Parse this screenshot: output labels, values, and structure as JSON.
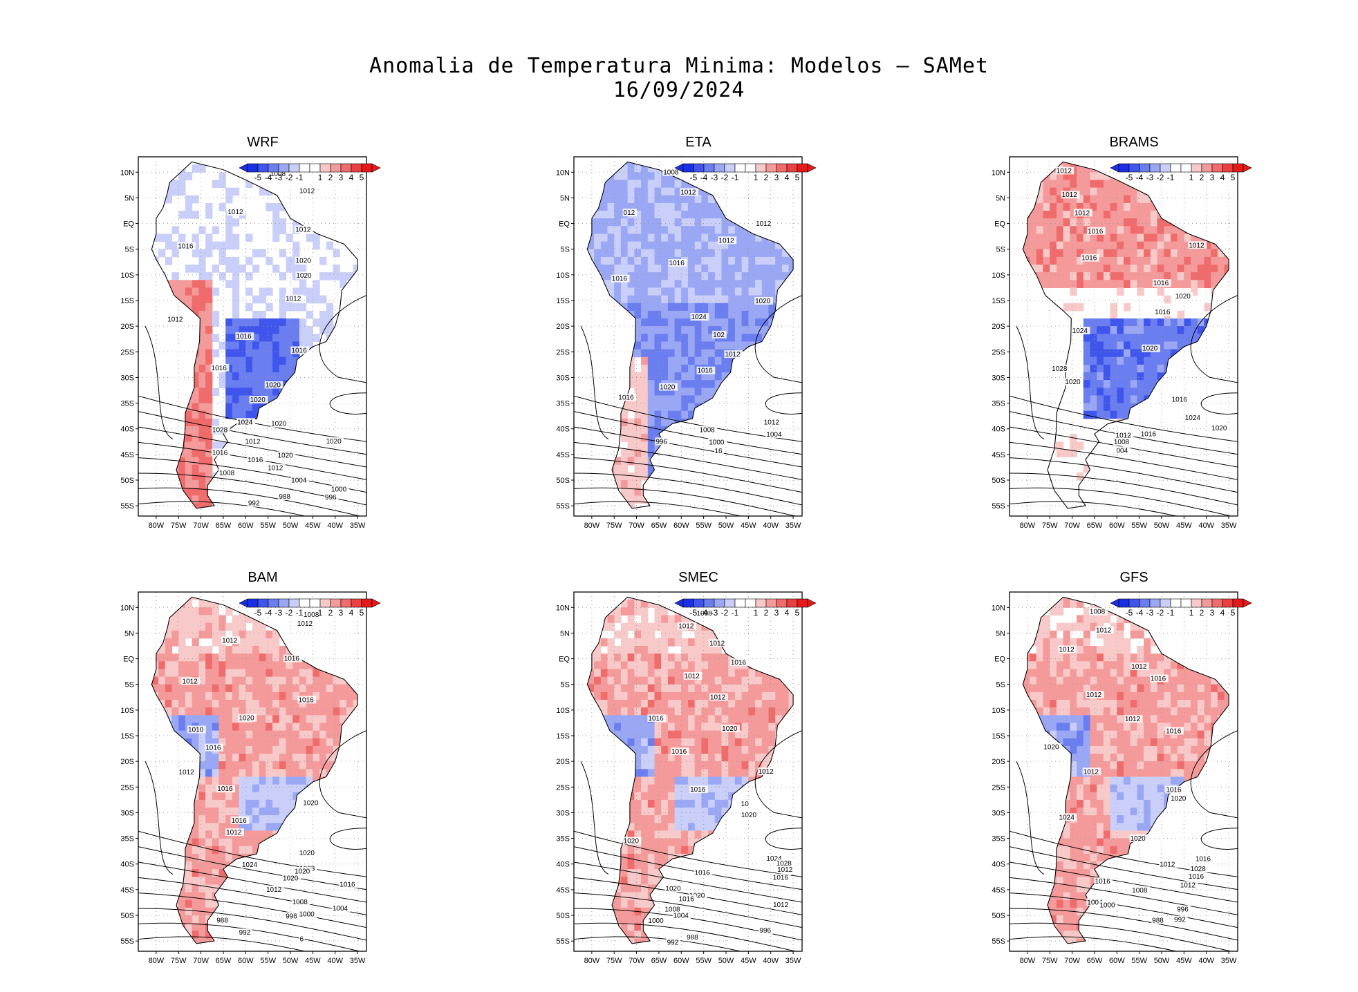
{
  "title": {
    "line1": "Anomalia de Temperatura Minima: Modelos — SAMet",
    "line2": "16/09/2024"
  },
  "chart_data": [
    {
      "type": "heatmap",
      "title": "WRF",
      "anomaly": "mixed",
      "xticks": [
        "80W",
        "75W",
        "70W",
        "65W",
        "60W",
        "55W",
        "50W",
        "45W",
        "40W",
        "35W"
      ],
      "yticks": [
        "10N",
        "5N",
        "EQ",
        "5S",
        "10S",
        "15S",
        "20S",
        "25S",
        "30S",
        "35S",
        "40S",
        "45S",
        "50S",
        "55S"
      ],
      "colorbar": {
        "labels": [
          "-5",
          "-4",
          "-3",
          "-2",
          "-1",
          "1",
          "2",
          "3",
          "4",
          "5"
        ]
      },
      "contour_labels": [
        "1008",
        "1012",
        "1012",
        "1012",
        "1016",
        "1020",
        "1020",
        "1012",
        "1012",
        "1016",
        "1016",
        "1016",
        "1020",
        "1020",
        "1024",
        "1020",
        "1028",
        "1020",
        "1012",
        "1016",
        "1020",
        "1016",
        "1012",
        "1008",
        "1004",
        "1000",
        "996",
        "988",
        "992"
      ]
    },
    {
      "type": "heatmap",
      "title": "ETA",
      "anomaly": "cold",
      "xticks": [
        "80W",
        "75W",
        "70W",
        "65W",
        "60W",
        "55W",
        "50W",
        "45W",
        "40W",
        "35W"
      ],
      "yticks": [
        "10N",
        "5N",
        "EQ",
        "5S",
        "10S",
        "15S",
        "20S",
        "25S",
        "30S",
        "35S",
        "40S",
        "45S",
        "50S",
        "55S"
      ],
      "colorbar": {
        "labels": [
          "-5",
          "-4",
          "-3",
          "-2",
          "-1",
          "1",
          "2",
          "3",
          "4",
          "5"
        ]
      },
      "contour_labels": [
        "1008",
        "1012",
        "012",
        "1012",
        "1012",
        "1016",
        "1016",
        "1020",
        "1024",
        "102",
        "1012",
        "1016",
        "1020",
        "1016",
        "1012",
        "1008",
        "1004",
        "1000",
        "996",
        "16"
      ]
    },
    {
      "type": "heatmap",
      "title": "BRAMS",
      "anomaly": "warm-north",
      "xticks": [
        "80W",
        "75W",
        "70W",
        "65W",
        "60W",
        "55W",
        "50W",
        "45W",
        "40W",
        "35W"
      ],
      "yticks": [
        "10N",
        "5N",
        "EQ",
        "5S",
        "10S",
        "15S",
        "20S",
        "25S",
        "30S",
        "35S",
        "40S",
        "45S",
        "50S",
        "55S"
      ],
      "colorbar": {
        "labels": [
          "-5",
          "-4",
          "-3",
          "-2",
          "-1",
          "1",
          "2",
          "3",
          "4",
          "5"
        ]
      },
      "contour_labels": [
        "1012",
        "1012",
        "1012",
        "1016",
        "1012",
        "1016",
        "1016",
        "1020",
        "1016",
        "1024",
        "1020",
        "1028",
        "1020",
        "1016",
        "1024",
        "1020",
        "1016",
        "1012",
        "1008",
        "004"
      ]
    },
    {
      "type": "heatmap",
      "title": "BAM",
      "anomaly": "warm",
      "xticks": [
        "80W",
        "75W",
        "70W",
        "65W",
        "60W",
        "55W",
        "50W",
        "45W",
        "40W",
        "35W"
      ],
      "yticks": [
        "10N",
        "5N",
        "EQ",
        "5S",
        "10S",
        "15S",
        "20S",
        "25S",
        "30S",
        "35S",
        "40S",
        "45S",
        "50S",
        "55S"
      ],
      "colorbar": {
        "labels": [
          "-5",
          "-4",
          "-3",
          "-2",
          "-1",
          "1",
          "2",
          "3",
          "4",
          "5"
        ]
      },
      "contour_labels": [
        "1008",
        "1012",
        "1012",
        "1016",
        "1012",
        "1016",
        "1020",
        "1010",
        "1016",
        "1012",
        "1016",
        "1020",
        "1016",
        "1012",
        "1020",
        "1024",
        "1028",
        "1020",
        "1020",
        "1016",
        "1012",
        "1008",
        "1004",
        "1000",
        "996",
        "988",
        "992",
        "6"
      ]
    },
    {
      "type": "heatmap",
      "title": "SMEC",
      "anomaly": "warm",
      "xticks": [
        "80W",
        "75W",
        "70W",
        "65W",
        "60W",
        "55W",
        "50W",
        "45W",
        "40W",
        "35W"
      ],
      "yticks": [
        "10N",
        "5N",
        "EQ",
        "5S",
        "10S",
        "15S",
        "20S",
        "25S",
        "30S",
        "35S",
        "40S",
        "45S",
        "50S",
        "55S"
      ],
      "colorbar": {
        "labels": [
          "-5",
          "-4",
          "-3",
          "-2",
          "-1",
          "1",
          "2",
          "3",
          "4",
          "5"
        ]
      },
      "contour_labels": [
        "1008",
        "1012",
        "1012",
        "1016",
        "1012",
        "1012",
        "1016",
        "1020",
        "1016",
        "1012",
        "1016",
        "10",
        "1020",
        "1020",
        "1024",
        "1028",
        "1012",
        "1016",
        "1016",
        "1020",
        "1020",
        "1016",
        "1012",
        "1008",
        "1004",
        "1000",
        "996",
        "988",
        "992"
      ]
    },
    {
      "type": "heatmap",
      "title": "GFS",
      "anomaly": "warm",
      "xticks": [
        "80W",
        "75W",
        "70W",
        "65W",
        "60W",
        "55W",
        "50W",
        "45W",
        "40W",
        "35W"
      ],
      "yticks": [
        "10N",
        "5N",
        "EQ",
        "5S",
        "10S",
        "15S",
        "20S",
        "25S",
        "30S",
        "35S",
        "40S",
        "45S",
        "50S",
        "55S"
      ],
      "colorbar": {
        "labels": [
          "-5",
          "-4",
          "-3",
          "-2",
          "-1",
          "1",
          "2",
          "3",
          "4",
          "5"
        ]
      },
      "contour_labels": [
        "1008",
        "1012",
        "1012",
        "1012",
        "1016",
        "1012",
        "1012",
        "1016",
        "1020",
        "1012",
        "1016",
        "1020",
        "1024",
        "1020",
        "1016",
        "1012",
        "1028",
        "1016",
        "1016",
        "1012",
        "1008",
        "1004",
        "1000",
        "996",
        "988",
        "992"
      ]
    }
  ],
  "colors": {
    "cold": [
      "#1a2ee6",
      "#3f55ec",
      "#6b7ef0",
      "#9aa7f4",
      "#c9cff8"
    ],
    "warm": [
      "#f8c9c9",
      "#f49a9a",
      "#f06b6b",
      "#ec3f3f",
      "#e61a1a"
    ],
    "neutral": "#ffffff"
  }
}
